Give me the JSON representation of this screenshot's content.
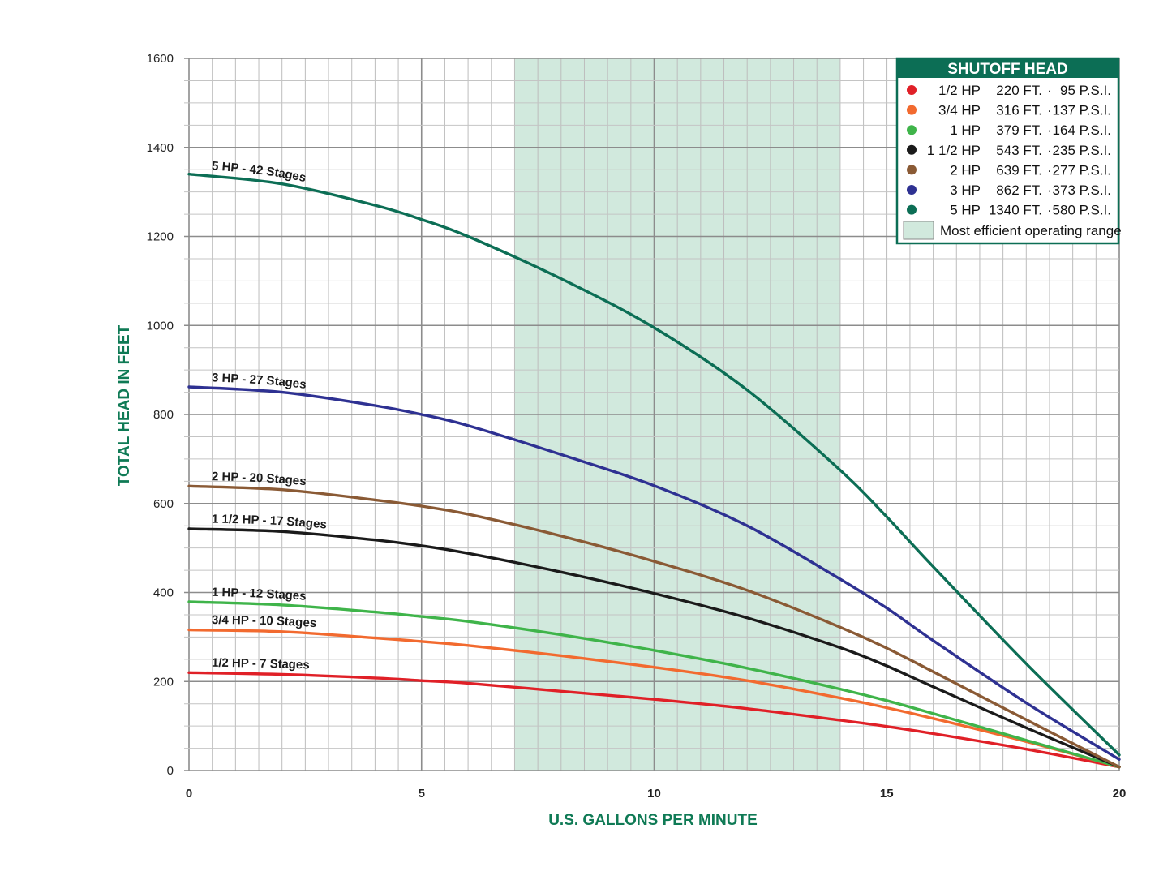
{
  "chart_data": {
    "type": "line",
    "xlabel": "U.S. GALLONS PER MINUTE",
    "ylabel": "TOTAL HEAD IN FEET",
    "xlim": [
      0,
      20
    ],
    "ylim": [
      0,
      1600
    ],
    "x_ticks": [
      "0",
      "5",
      "10",
      "15",
      "20"
    ],
    "y_ticks": [
      "0",
      "200",
      "400",
      "600",
      "800",
      "1000",
      "1200",
      "1400",
      "1600"
    ],
    "grid": true,
    "shaded_range": {
      "x": [
        7,
        14
      ],
      "color": "#d1e9dd",
      "label": "Most efficient operating range"
    },
    "x": [
      0,
      2,
      4,
      5,
      6,
      8,
      10,
      12,
      14,
      15,
      16,
      18,
      20
    ],
    "series": [
      {
        "name": "1/2 HP - 7 Stages",
        "color": "#e02027",
        "values": [
          220,
          216,
          208,
          202,
          196,
          178,
          160,
          139,
          113,
          99,
          83,
          48,
          8
        ]
      },
      {
        "name": "3/4 HP - 10 Stages",
        "color": "#f26a2f",
        "values": [
          316,
          312,
          298,
          290,
          281,
          258,
          232,
          202,
          163,
          141,
          117,
          65,
          8
        ]
      },
      {
        "name": "1 HP - 12 Stages",
        "color": "#3fb44a",
        "values": [
          379,
          372,
          356,
          346,
          335,
          305,
          270,
          230,
          183,
          157,
          128,
          68,
          8
        ]
      },
      {
        "name": "1 1/2 HP - 17 Stages",
        "color": "#1a1a1a",
        "values": [
          543,
          537,
          518,
          505,
          488,
          446,
          398,
          343,
          276,
          235,
          188,
          96,
          8
        ]
      },
      {
        "name": "2 HP - 20 Stages",
        "color": "#8a5a35",
        "values": [
          639,
          631,
          608,
          594,
          576,
          527,
          470,
          405,
          322,
          275,
          222,
          114,
          8
        ]
      },
      {
        "name": "3 HP - 27 Stages",
        "color": "#2e3192",
        "values": [
          862,
          850,
          820,
          800,
          775,
          710,
          640,
          550,
          430,
          365,
          292,
          152,
          25
        ]
      },
      {
        "name": "5 HP - 42 Stages",
        "color": "#0c6e55",
        "values": [
          1340,
          1318,
          1270,
          1238,
          1200,
          1105,
          995,
          855,
          675,
          570,
          458,
          240,
          35
        ]
      }
    ]
  },
  "legend": {
    "title": "SHUTOFF HEAD",
    "title_bg": "#0c6e55",
    "border": "#0c6e55",
    "rows": [
      {
        "hp": "1/2 HP",
        "ft": "220 FT.",
        "psi": "95 P.S.I.",
        "color": "#e02027"
      },
      {
        "hp": "3/4 HP",
        "ft": "316 FT.",
        "psi": "137 P.S.I.",
        "color": "#f26a2f"
      },
      {
        "hp": "1 HP",
        "ft": "379 FT.",
        "psi": "164 P.S.I.",
        "color": "#3fb44a"
      },
      {
        "hp": "1 1/2 HP",
        "ft": "543 FT.",
        "psi": "235 P.S.I.",
        "color": "#1a1a1a"
      },
      {
        "hp": "2 HP",
        "ft": "639 FT.",
        "psi": "277 P.S.I.",
        "color": "#8a5a35"
      },
      {
        "hp": "3 HP",
        "ft": "862 FT.",
        "psi": "373 P.S.I.",
        "color": "#2e3192"
      },
      {
        "hp": "5 HP",
        "ft": "1340 FT.",
        "psi": "580 P.S.I.",
        "color": "#0c6e55"
      }
    ],
    "separator": "·",
    "range_label": "Most efficient operating range"
  }
}
